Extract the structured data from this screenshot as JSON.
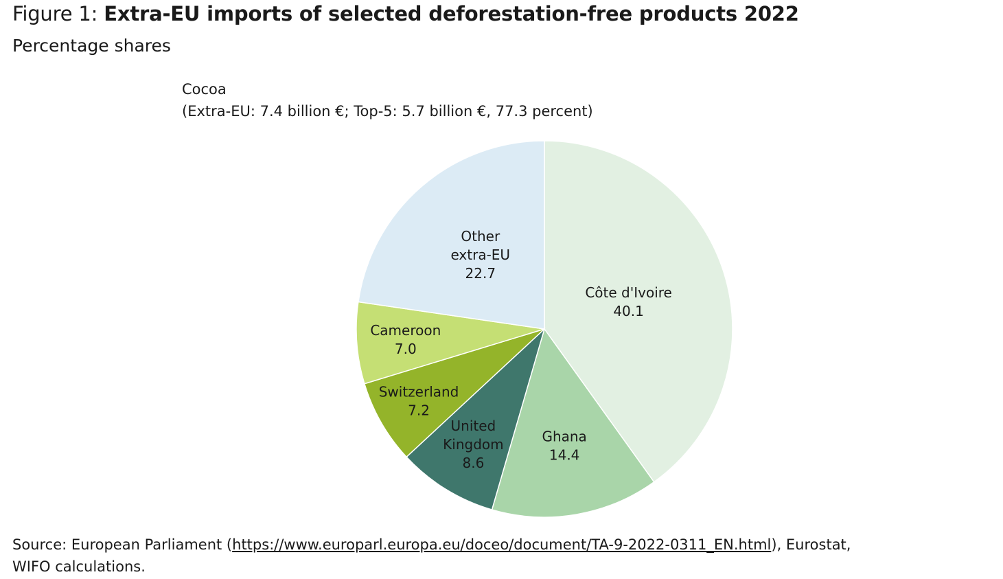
{
  "figure": {
    "prefix": "Figure 1: ",
    "title": "Extra-EU imports of selected deforestation-free products 2022",
    "subtitle": "Percentage shares"
  },
  "chart_heading": {
    "line1": "Cocoa",
    "line2": "(Extra-EU: 7.4 billion €; Top-5: 5.7 billion €, 77.3 percent)"
  },
  "chart_data": {
    "type": "pie",
    "title": "Cocoa",
    "subtitle": "(Extra-EU: 7.4 billion €; Top-5: 5.7 billion €, 77.3 percent)",
    "start_angle_deg": 0,
    "direction": "clockwise",
    "slices": [
      {
        "label_lines": [
          "Côte d'Ivoire"
        ],
        "value": 40.1,
        "value_label": "40.1",
        "color": "#e2f0e2"
      },
      {
        "label_lines": [
          "Ghana"
        ],
        "value": 14.4,
        "value_label": "14.4",
        "color": "#a9d5a9"
      },
      {
        "label_lines": [
          "United",
          "Kingdom"
        ],
        "value": 8.6,
        "value_label": "8.6",
        "color": "#3f776c"
      },
      {
        "label_lines": [
          "Switzerland"
        ],
        "value": 7.2,
        "value_label": "7.2",
        "color": "#94b42a"
      },
      {
        "label_lines": [
          "Cameroon"
        ],
        "value": 7.0,
        "value_label": "7.0",
        "color": "#c5df74"
      },
      {
        "label_lines": [
          "Other",
          "extra-EU"
        ],
        "value": 22.7,
        "value_label": "22.7",
        "color": "#dcebf5"
      }
    ]
  },
  "source": {
    "prefix": "Source: European Parliament (",
    "link": "https://www.europarl.europa.eu/doceo/document/TA-9-2022-0311_EN.html",
    "suffix": "), Eurostat,",
    "line2": "WIFO calculations."
  }
}
